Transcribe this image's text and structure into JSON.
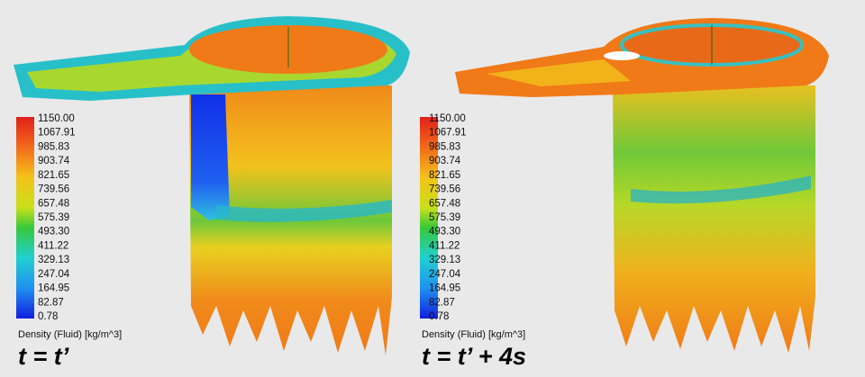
{
  "panels": [
    {
      "legend": {
        "ticks": [
          "1150.00",
          "1067.91",
          "985.83",
          "903.74",
          "821.65",
          "739.56",
          "657.48",
          "575.39",
          "493.30",
          "411.22",
          "329.13",
          "247.04",
          "164.95",
          "82.87",
          "0.78"
        ],
        "title": "Density (Fluid) [kg/m^3]"
      },
      "time_label": "t = t’"
    },
    {
      "legend": {
        "ticks": [
          "1150.00",
          "1067.91",
          "985.83",
          "903.74",
          "821.65",
          "739.56",
          "657.48",
          "575.39",
          "493.30",
          "411.22",
          "329.13",
          "247.04",
          "164.95",
          "82.87",
          "0.78"
        ],
        "title": "Density (Fluid) [kg/m^3]"
      },
      "time_label": "t = t’ + 4s"
    }
  ]
}
